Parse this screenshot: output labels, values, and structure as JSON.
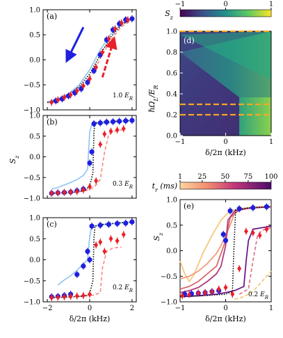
{
  "colors": {
    "blue": "#1f1fe0",
    "red": "#e8202a",
    "light_blue": "#8ec3f2",
    "light_red": "#f48a80",
    "black": "#000000",
    "orange_dashed": "#f5a623"
  },
  "chart_data": [
    {
      "type": "scatter",
      "panel_label": "(a)",
      "annotation": "1.0 E_R",
      "xlim": [
        -2.2,
        2.2
      ],
      "ylim": [
        -1.0,
        1.0
      ],
      "x_ticks": [
        -2,
        0,
        2
      ],
      "y_ticks": [
        -1.0,
        -0.5,
        0.0,
        0.5,
        1.0
      ],
      "y_tick_labels": [
        "−1.0",
        "−0.5",
        "0.0",
        "0.5",
        "1.0"
      ],
      "series": [
        {
          "role": "blue_points",
          "x": [
            -1.6,
            -1.3,
            -1.0,
            -0.7,
            -0.4,
            -0.1,
            0.2,
            0.5,
            0.8,
            1.1,
            1.4,
            1.7,
            2.0
          ],
          "y": [
            -0.82,
            -0.78,
            -0.72,
            -0.66,
            -0.58,
            -0.45,
            -0.22,
            0.1,
            0.4,
            0.6,
            0.72,
            0.8,
            0.82
          ]
        },
        {
          "role": "red_points",
          "x": [
            -1.8,
            -1.5,
            -1.2,
            -0.9,
            -0.6,
            -0.3,
            0.0,
            0.3,
            0.6,
            0.9,
            1.2,
            1.5,
            1.8
          ],
          "y": [
            -0.85,
            -0.8,
            -0.75,
            -0.7,
            -0.62,
            -0.52,
            -0.38,
            -0.15,
            0.15,
            0.42,
            0.62,
            0.74,
            0.8
          ]
        },
        {
          "role": "light_blue_line",
          "x": [
            -2.0,
            -1.5,
            -1.0,
            -0.5,
            0.0,
            0.5,
            1.0,
            1.5,
            2.0
          ],
          "y": [
            -0.84,
            -0.78,
            -0.68,
            -0.5,
            -0.2,
            0.2,
            0.52,
            0.72,
            0.82
          ]
        },
        {
          "role": "light_red_dashed",
          "x": [
            -2.0,
            -1.5,
            -1.0,
            -0.5,
            0.0,
            0.5,
            1.0,
            1.5,
            2.0
          ],
          "y": [
            -0.86,
            -0.82,
            -0.74,
            -0.6,
            -0.36,
            0.02,
            0.4,
            0.66,
            0.8
          ]
        },
        {
          "role": "black_dotted",
          "x": [
            -2.0,
            -1.5,
            -1.0,
            -0.5,
            0.0,
            0.5,
            1.0,
            1.5,
            2.0
          ],
          "y": [
            -0.85,
            -0.8,
            -0.7,
            -0.54,
            -0.28,
            0.1,
            0.46,
            0.7,
            0.82
          ]
        }
      ],
      "arrows": [
        {
          "color": "blue",
          "from": [
            -0.3,
            0.65
          ],
          "to": [
            -1.0,
            0.05
          ]
        },
        {
          "color": "red",
          "from": [
            0.6,
            -0.35
          ],
          "to": [
            1.1,
            0.35
          ]
        }
      ]
    },
    {
      "type": "scatter",
      "panel_label": "(b)",
      "annotation": "0.3 E_R",
      "xlim": [
        -2.2,
        2.2
      ],
      "ylim": [
        -1.0,
        1.0
      ],
      "x_ticks": [
        -2,
        0,
        2
      ],
      "y_ticks": [
        -1.0,
        -0.5,
        0.0,
        0.5,
        1.0
      ],
      "y_tick_labels": [
        "−1.0",
        "−0.5",
        "0.0",
        "0.5",
        "1.0"
      ],
      "ylabel": "S_z",
      "series": [
        {
          "role": "blue_points",
          "x": [
            -1.8,
            -1.5,
            -1.2,
            -0.9,
            -0.6,
            -0.3,
            0.0,
            0.1,
            0.2,
            0.5,
            0.8,
            1.1,
            1.4,
            1.7,
            2.0
          ],
          "y": [
            -0.88,
            -0.87,
            -0.86,
            -0.85,
            -0.82,
            -0.78,
            -0.15,
            0.12,
            0.8,
            0.82,
            0.84,
            0.85,
            0.86,
            0.87,
            0.88
          ]
        },
        {
          "role": "red_points",
          "x": [
            -1.8,
            -1.5,
            -1.2,
            -0.9,
            -0.6,
            -0.3,
            0.0,
            0.3,
            0.5,
            0.7,
            1.0,
            1.3,
            1.6
          ],
          "y": [
            -0.88,
            -0.87,
            -0.86,
            -0.85,
            -0.84,
            -0.8,
            -0.72,
            -0.58,
            0.3,
            0.55,
            0.62,
            0.65,
            0.68
          ]
        },
        {
          "role": "light_blue_line",
          "x": [
            -1.8,
            -1.5,
            -1.2,
            -0.9,
            -0.6,
            -0.3,
            -0.1,
            0.0,
            0.1,
            0.3,
            0.7,
            1.2,
            1.7,
            2.0
          ],
          "y": [
            -0.78,
            -0.74,
            -0.68,
            -0.62,
            -0.55,
            -0.45,
            -0.3,
            0.6,
            0.78,
            0.8,
            0.82,
            0.84,
            0.86,
            0.87
          ]
        },
        {
          "role": "light_red_dashed",
          "x": [
            -1.8,
            -1.2,
            -0.6,
            -0.2,
            0.2,
            0.5,
            0.7,
            0.9,
            1.2,
            1.6
          ],
          "y": [
            -0.88,
            -0.86,
            -0.85,
            -0.82,
            -0.74,
            -0.55,
            0.1,
            0.55,
            0.62,
            0.66
          ]
        },
        {
          "role": "black_dotted",
          "x": [
            -1.8,
            -1.2,
            -0.6,
            -0.2,
            0.0,
            0.15,
            0.2,
            0.25,
            0.6,
            1.2,
            2.0
          ],
          "y": [
            -0.88,
            -0.87,
            -0.85,
            -0.8,
            -0.7,
            -0.4,
            0.6,
            0.82,
            0.84,
            0.86,
            0.88
          ]
        }
      ]
    },
    {
      "type": "scatter",
      "panel_label": "(c)",
      "annotation": "0.2 E_R",
      "xlim": [
        -2.2,
        2.2
      ],
      "ylim": [
        -1.0,
        1.0
      ],
      "x_ticks": [
        -2,
        0,
        2
      ],
      "y_ticks": [
        -1.0,
        -0.5,
        0.0,
        0.5,
        1.0
      ],
      "y_tick_labels": [
        "−1.0",
        "−0.5",
        "0.0",
        "0.5",
        "1.0"
      ],
      "xlabel": "δ/2π (kHz)",
      "series": [
        {
          "role": "blue_points",
          "x": [
            -1.8,
            -1.5,
            -1.2,
            -0.9,
            -0.6,
            -0.3,
            -0.1,
            0.0,
            0.1,
            0.5,
            0.9,
            1.3,
            1.7,
            2.0
          ],
          "y": [
            -0.88,
            -0.87,
            -0.85,
            -0.82,
            -0.35,
            -0.15,
            0.2,
            0.0,
            0.8,
            0.82,
            0.84,
            0.86,
            0.87,
            0.9
          ]
        },
        {
          "role": "red_points",
          "x": [
            -1.8,
            -1.5,
            -1.2,
            -0.9,
            -0.6,
            -0.3,
            0.0,
            0.3,
            0.5,
            0.7,
            1.0,
            1.3,
            1.6
          ],
          "y": [
            -0.9,
            -0.89,
            -0.88,
            -0.87,
            -0.86,
            -0.85,
            -0.82,
            0.35,
            0.42,
            0.2,
            0.5,
            0.45,
            0.6
          ]
        },
        {
          "role": "light_blue_line",
          "x": [
            -1.5,
            -1.2,
            -0.9,
            -0.6,
            -0.3,
            -0.1,
            0.0,
            0.1,
            0.4,
            0.8,
            1.2,
            1.6,
            2.0
          ],
          "y": [
            -0.6,
            -0.48,
            -0.38,
            -0.25,
            -0.1,
            0.0,
            0.55,
            0.8,
            0.82,
            0.84,
            0.86,
            0.88,
            0.9
          ]
        },
        {
          "role": "light_red_dashed",
          "x": [
            -1.8,
            -1.2,
            -0.6,
            -0.2,
            0.2,
            0.5,
            0.6,
            0.8,
            1.1,
            1.5
          ],
          "y": [
            -0.9,
            -0.88,
            -0.87,
            -0.86,
            -0.84,
            -0.78,
            -0.2,
            0.2,
            0.28,
            0.3
          ]
        },
        {
          "role": "black_dotted",
          "x": [
            -1.8,
            -1.2,
            -0.6,
            -0.2,
            0.0,
            0.15,
            0.2,
            0.25,
            0.6,
            1.2,
            2.0
          ],
          "y": [
            -0.9,
            -0.89,
            -0.88,
            -0.86,
            -0.8,
            -0.5,
            0.5,
            0.8,
            0.84,
            0.87,
            0.9
          ]
        }
      ]
    },
    {
      "type": "heatmap",
      "panel_label": "(d)",
      "colorbar_label": "S_z",
      "colorbar_ticks": [
        -1,
        0,
        1
      ],
      "colorbar_tick_labels": [
        "−1",
        "0",
        "1"
      ],
      "xlim": [
        -1,
        1
      ],
      "ylim": [
        0.0,
        1.0
      ],
      "x_ticks": [
        -1,
        0,
        1
      ],
      "x_tick_labels": [
        "−1",
        "0",
        "1"
      ],
      "y_ticks": [
        0.0,
        0.2,
        0.4,
        0.6,
        0.8,
        1.0
      ],
      "y_tick_labels": [
        "0.0",
        "0.2",
        "0.4",
        "0.6",
        "0.8",
        "1.0"
      ],
      "xlabel": "δ/2π (kHz)",
      "ylabel": "ℏΩ_L/E_R",
      "dashed_lines_y": [
        1.0,
        0.3,
        0.2
      ],
      "jump_x_at_low_omega": 0.3
    },
    {
      "type": "line",
      "panel_label": "(e)",
      "annotation": "0.2 E_R",
      "colorbar_label": "t_r (ms)",
      "colorbar_ticks": [
        1,
        25,
        50,
        75,
        100
      ],
      "xlim": [
        -1,
        1
      ],
      "ylim": [
        -1.0,
        1.0
      ],
      "x_ticks": [
        -1,
        0,
        1
      ],
      "x_tick_labels": [
        "−1",
        "0",
        "1"
      ],
      "y_ticks": [
        -1.0,
        -0.5,
        0.0,
        0.5,
        1.0
      ],
      "y_tick_labels": [
        "−1.0",
        "−0.5",
        "0.0",
        "0.5",
        "1.0"
      ],
      "xlabel": "δ/2π (kHz)",
      "ylabel": "S_z",
      "series": [
        {
          "role": "blue_points",
          "x": [
            -0.9,
            -0.75,
            -0.6,
            -0.45,
            -0.3,
            -0.15,
            -0.05,
            0.0,
            0.1,
            0.3,
            0.6,
            0.9
          ],
          "y": [
            -0.85,
            -0.84,
            -0.83,
            -0.82,
            -0.8,
            -0.78,
            0.32,
            0.2,
            0.78,
            0.82,
            0.84,
            0.86
          ]
        },
        {
          "role": "red_points",
          "x": [
            -0.95,
            -0.8,
            -0.6,
            -0.45,
            -0.3,
            -0.15,
            0.0,
            0.15,
            0.3,
            0.45,
            0.6,
            0.75,
            0.9
          ],
          "y": [
            -0.88,
            -0.86,
            -0.83,
            -0.82,
            -0.8,
            -0.75,
            -0.72,
            -0.85,
            -0.35,
            0.38,
            0.35,
            0.3,
            0.42
          ]
        },
        {
          "role": "black_dotted",
          "x": [
            -1.0,
            -0.5,
            0.0,
            0.15,
            0.18,
            0.22,
            0.5,
            1.0
          ],
          "y": [
            -0.9,
            -0.88,
            -0.85,
            -0.8,
            0.0,
            0.8,
            0.84,
            0.86
          ]
        }
      ],
      "rate_curves": [
        {
          "t_r": 5,
          "color": "#f6c77a",
          "x": [
            -1.0,
            -0.9,
            -0.8,
            -0.7,
            -0.5,
            -0.3,
            -0.1,
            0.1,
            0.3,
            0.5,
            0.7,
            1.0
          ],
          "y": [
            -0.2,
            -0.45,
            -0.6,
            -0.48,
            -0.05,
            0.3,
            0.6,
            0.78,
            0.82,
            0.84,
            0.86,
            0.87
          ]
        },
        {
          "role": "mid1",
          "t_r": 20,
          "color": "#f29a7a",
          "x": [
            -1.0,
            -0.8,
            -0.6,
            -0.4,
            -0.2,
            -0.1,
            0.0,
            0.1,
            0.2,
            0.4,
            0.6,
            1.0
          ],
          "y": [
            -0.55,
            -0.5,
            -0.4,
            -0.25,
            -0.05,
            0.1,
            0.3,
            0.5,
            0.75,
            0.82,
            0.84,
            0.86
          ]
        },
        {
          "t_r": 40,
          "color": "#d96a6a",
          "x": [
            -1.0,
            -0.8,
            -0.6,
            -0.4,
            -0.2,
            -0.1,
            0.0,
            0.1,
            0.3,
            0.6,
            1.0
          ],
          "y": [
            -0.75,
            -0.7,
            -0.6,
            -0.45,
            -0.3,
            -0.05,
            0.2,
            0.65,
            0.8,
            0.84,
            0.86
          ]
        },
        {
          "t_r": 60,
          "color": "#b03a7a",
          "x": [
            -1.0,
            -0.8,
            -0.6,
            -0.4,
            -0.2,
            -0.1,
            0.0,
            0.05,
            0.2,
            0.5,
            1.0
          ],
          "y": [
            -0.82,
            -0.78,
            -0.72,
            -0.6,
            -0.45,
            -0.3,
            0.1,
            0.6,
            0.78,
            0.83,
            0.86
          ]
        },
        {
          "t_r": 85,
          "color": "#6a1a8a",
          "x": [
            -1.0,
            -0.6,
            -0.2,
            0.0,
            0.2,
            0.4,
            0.45,
            0.5,
            0.6,
            0.8,
            1.0
          ],
          "y": [
            -0.9,
            -0.88,
            -0.85,
            -0.82,
            -0.78,
            -0.7,
            -0.2,
            0.2,
            0.42,
            0.45,
            0.48
          ]
        },
        {
          "t_r": 95,
          "color": "#f6c77a",
          "dashed": true,
          "x": [
            0.2,
            0.4,
            0.6,
            0.8,
            1.0
          ],
          "y": [
            -0.95,
            -0.9,
            -0.8,
            -0.6,
            -0.4
          ]
        },
        {
          "t_r": 70,
          "color": "#e07a90",
          "dashed": true,
          "x": [
            0.3,
            0.5,
            0.6,
            0.7,
            0.8,
            1.0
          ],
          "y": [
            -0.85,
            -0.75,
            -0.2,
            0.3,
            0.4,
            0.45
          ]
        }
      ]
    }
  ]
}
